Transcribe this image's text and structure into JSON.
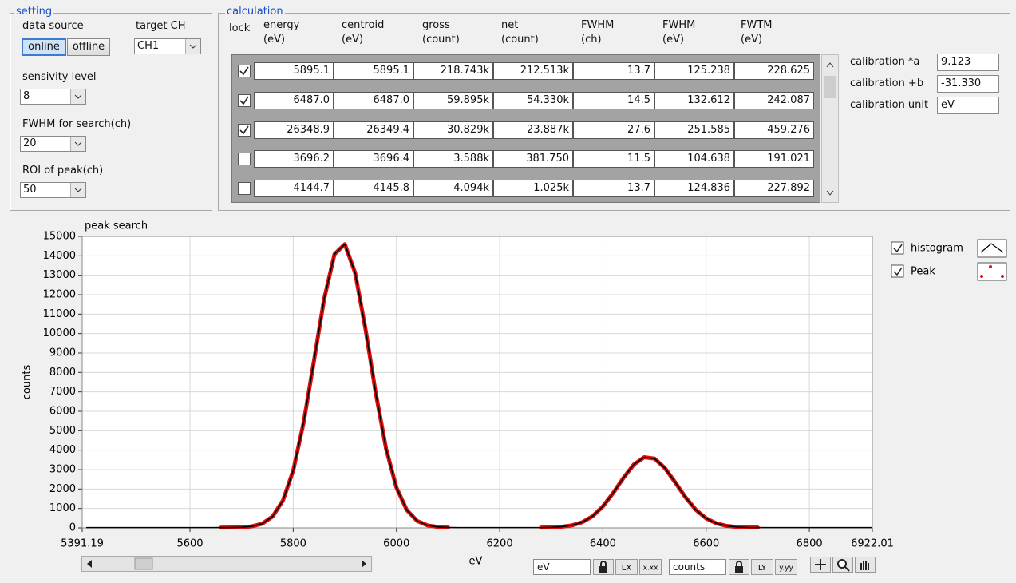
{
  "setting": {
    "title": "setting",
    "data_source": {
      "label": "data source",
      "options": [
        "online",
        "offline"
      ],
      "selected": 0
    },
    "target_ch": {
      "label": "target CH",
      "value": "CH1"
    },
    "sensitivity": {
      "label": "sensivity level",
      "value": "8"
    },
    "fwhm_search": {
      "label": "FWHM for search(ch)",
      "value": "20"
    },
    "roi": {
      "label": "ROI of peak(ch)",
      "value": "50"
    }
  },
  "calculation": {
    "title": "calculation",
    "lock_header": "lock",
    "headers": [
      [
        "energy",
        "(eV)"
      ],
      [
        "centroid",
        "(eV)"
      ],
      [
        "gross",
        "(count)"
      ],
      [
        "net",
        "(count)"
      ],
      [
        "FWHM",
        "(ch)"
      ],
      [
        "FWHM",
        "(eV)"
      ],
      [
        "FWTM",
        "(eV)"
      ]
    ],
    "rows": [
      {
        "lock": true,
        "cells": [
          "5895.1",
          "5895.1",
          "218.743k",
          "212.513k",
          "13.7",
          "125.238",
          "228.625"
        ]
      },
      {
        "lock": true,
        "cells": [
          "6487.0",
          "6487.0",
          "59.895k",
          "54.330k",
          "14.5",
          "132.612",
          "242.087"
        ]
      },
      {
        "lock": true,
        "cells": [
          "26348.9",
          "26349.4",
          "30.829k",
          "23.887k",
          "27.6",
          "251.585",
          "459.276"
        ]
      },
      {
        "lock": false,
        "cells": [
          "3696.2",
          "3696.4",
          "3.588k",
          "381.750",
          "11.5",
          "104.638",
          "191.021"
        ]
      },
      {
        "lock": false,
        "cells": [
          "4144.7",
          "4145.8",
          "4.094k",
          "1.025k",
          "13.7",
          "124.836",
          "227.892"
        ]
      }
    ]
  },
  "calibration": [
    {
      "label": "calibration *a",
      "value": "9.123"
    },
    {
      "label": "calibration +b",
      "value": "-31.330"
    },
    {
      "label": "calibration unit",
      "value": "eV"
    }
  ],
  "chart_data": {
    "type": "line",
    "title": "peak search",
    "x_label": "eV",
    "y_label": "counts",
    "x": [
      5400,
      5420,
      5440,
      5460,
      5480,
      5500,
      5520,
      5540,
      5560,
      5580,
      5600,
      5620,
      5640,
      5660,
      5680,
      5700,
      5720,
      5740,
      5760,
      5780,
      5800,
      5820,
      5840,
      5860,
      5880,
      5900,
      5920,
      5940,
      5960,
      5980,
      6000,
      6020,
      6040,
      6060,
      6080,
      6100,
      6120,
      6140,
      6160,
      6180,
      6200,
      6220,
      6240,
      6260,
      6280,
      6300,
      6320,
      6340,
      6360,
      6380,
      6400,
      6420,
      6440,
      6460,
      6480,
      6500,
      6520,
      6540,
      6560,
      6580,
      6600,
      6620,
      6640,
      6660,
      6680,
      6700,
      6720,
      6740,
      6760,
      6780,
      6800,
      6820,
      6840,
      6860,
      6880,
      6900,
      6920
    ],
    "series": [
      {
        "name": "histogram",
        "color": "#000000",
        "values": [
          15,
          15,
          15,
          15,
          15,
          15,
          15,
          15,
          15,
          15,
          15,
          15,
          15,
          16,
          19,
          32,
          78,
          218,
          586,
          1407,
          2955,
          5399,
          8565,
          11795,
          14089,
          14600,
          13122,
          10232,
          6921,
          4064,
          2075,
          923,
          362,
          130,
          48,
          23,
          15,
          15,
          15,
          15,
          15,
          15,
          15,
          15,
          15,
          29,
          58,
          131,
          294,
          603,
          1107,
          1800,
          2581,
          3265,
          3637,
          3568,
          3083,
          2347,
          1576,
          934,
          492,
          233,
          102,
          46,
          25,
          18,
          15,
          15,
          15,
          15,
          15,
          15,
          15,
          15,
          15,
          15,
          15
        ]
      },
      {
        "name": "Peak",
        "color": "#e01010",
        "values": [
          null,
          null,
          null,
          null,
          null,
          null,
          null,
          null,
          null,
          null,
          null,
          null,
          null,
          16,
          19,
          32,
          78,
          218,
          586,
          1407,
          2955,
          5399,
          8565,
          11795,
          14089,
          14600,
          13122,
          10232,
          6921,
          4064,
          2075,
          923,
          362,
          130,
          48,
          23,
          null,
          null,
          null,
          null,
          null,
          null,
          null,
          null,
          15,
          29,
          58,
          131,
          294,
          603,
          1107,
          1800,
          2581,
          3265,
          3637,
          3568,
          3083,
          2347,
          1576,
          934,
          492,
          233,
          102,
          46,
          25,
          18,
          null,
          null,
          null,
          null,
          null,
          null,
          null,
          null,
          null,
          null,
          null
        ]
      }
    ],
    "xlim": [
      5391.19,
      6922.01
    ],
    "xticks": [
      5391.19,
      5600,
      5800,
      6000,
      6200,
      6400,
      6600,
      6800,
      6922.01
    ],
    "ylim": [
      0,
      15000
    ],
    "yticks": [
      0,
      1000,
      2000,
      3000,
      4000,
      5000,
      6000,
      7000,
      8000,
      9000,
      10000,
      11000,
      12000,
      13000,
      14000,
      15000
    ],
    "grid": true,
    "legend": "right"
  },
  "graph_controls": {
    "x_scale": "eV",
    "y_scale": "counts"
  }
}
